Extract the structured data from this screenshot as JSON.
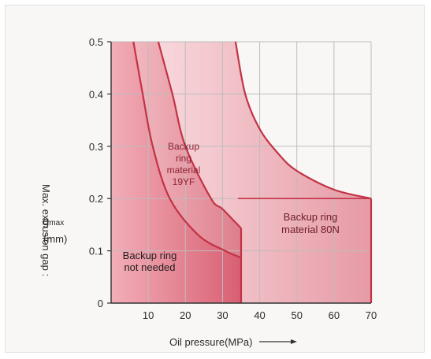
{
  "chart_data": {
    "type": "area",
    "xlabel": "Oil pressure(MPa)",
    "ylabel_main": "Max. extrusion gap :",
    "ylabel_symbol": "g",
    "ylabel_subscript": "max",
    "ylabel_unit": "(mm)",
    "xlim": [
      0,
      70
    ],
    "ylim": [
      0,
      0.5
    ],
    "x_ticks": [
      10,
      20,
      30,
      40,
      50,
      60,
      70
    ],
    "y_ticks": [
      0,
      0.1,
      0.2,
      0.3,
      0.4,
      0.5
    ],
    "y_tick_labels": [
      "0",
      "0.1",
      "0.2",
      "0.3",
      "0.4",
      "0.5"
    ],
    "grid": true,
    "accent_color": "#c23345",
    "boundaries": {
      "not_needed_limit": [
        [
          6.0,
          0.5
        ],
        [
          8.5,
          0.4
        ],
        [
          11.2,
          0.3
        ],
        [
          15.8,
          0.2
        ],
        [
          23.5,
          0.13
        ],
        [
          30.7,
          0.1
        ],
        [
          35,
          0.087
        ]
      ],
      "material_19YF_limit": [
        [
          12.7,
          0.5
        ],
        [
          16.5,
          0.4
        ],
        [
          20,
          0.3
        ],
        [
          26.9,
          0.2
        ],
        [
          30,
          0.18
        ],
        [
          35,
          0.143
        ]
      ],
      "material_80N_limit": [
        [
          33.5,
          0.5
        ],
        [
          36.1,
          0.4
        ],
        [
          40,
          0.333
        ],
        [
          45,
          0.286
        ],
        [
          50,
          0.253
        ],
        [
          60,
          0.217
        ],
        [
          70,
          0.2
        ]
      ]
    },
    "regions": [
      {
        "label_lines": [
          "Backup ring",
          "not needed"
        ]
      },
      {
        "label_lines": [
          "Backup",
          "ring",
          "material",
          "19YF"
        ]
      },
      {
        "label_lines": [
          "Backup ring",
          "material 80N"
        ]
      }
    ]
  }
}
